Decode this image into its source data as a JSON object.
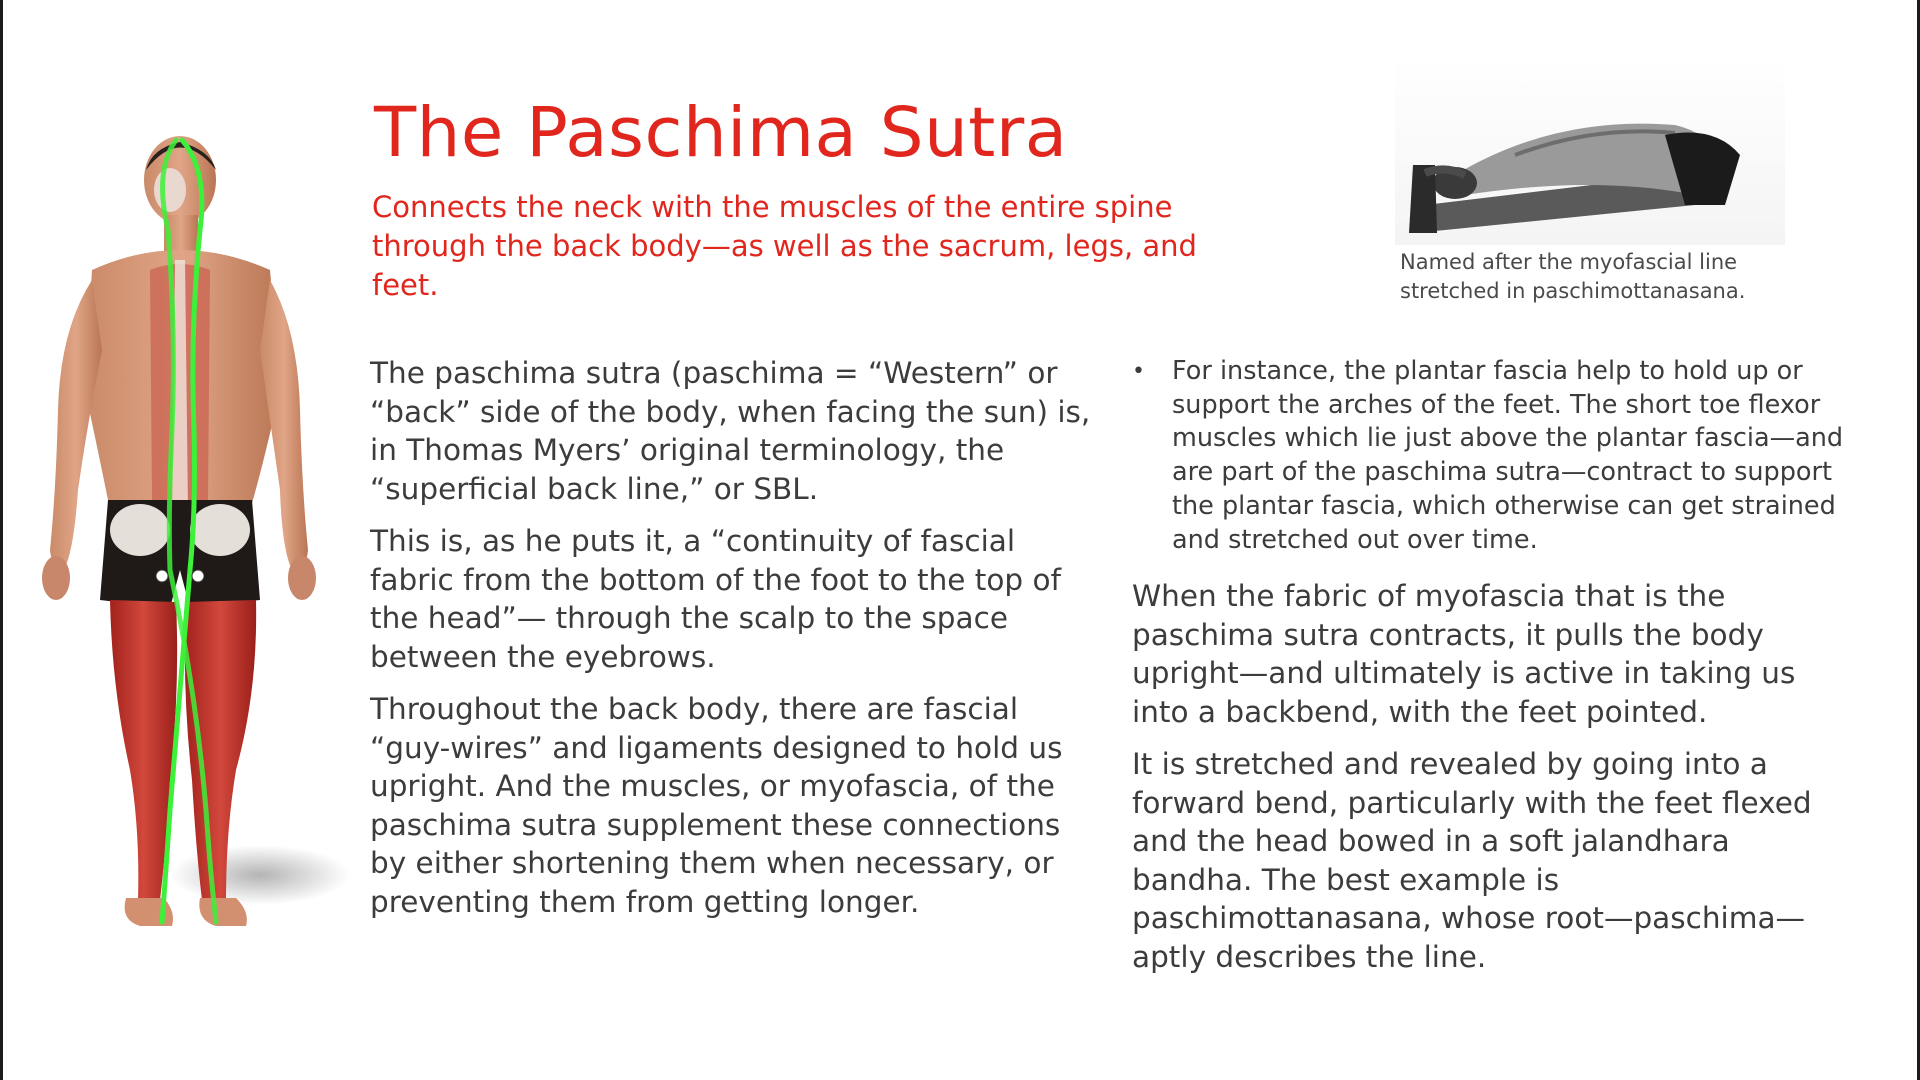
{
  "slide": {
    "title": "The Paschima Sutra",
    "subtitle": "Connects the neck with the muscles of the entire spine through the back body—as well as the sacrum, legs, and feet.",
    "accent_color": "#e0261d",
    "photo": {
      "icon": "forward-bend-photo",
      "caption": "Named after the myofascial line stretched in paschimottanasana."
    },
    "figure": {
      "icon": "anatomy-back-line-figure"
    },
    "left_column": [
      "The paschima sutra (paschima = “Western” or “back” side of the body, when facing the sun) is, in Thomas Myers’ original terminology, the “superficial back line,” or SBL.",
      "This is, as he puts it, a “continuity of fascial fabric from the bottom of the foot to the top of the head”— through the scalp to the space between the eyebrows.",
      "Throughout the back body, there are fascial “guy-wires” and ligaments designed to hold us upright. And the muscles, or myofascia, of the paschima sutra supplement these connections by either shortening them when necessary, or preventing them from getting longer."
    ],
    "right_column": {
      "bullet_marker": "•",
      "bullet": "For instance, the plantar fascia help to hold up or support the arches of the feet. The short toe flexor muscles which lie just above the plantar fascia—and are part of the paschima sutra—contract to support the plantar fascia, which otherwise can get strained and stretched out over time.",
      "paragraphs": [
        "When the fabric of myofascia that is the paschima sutra contracts, it pulls the body upright—and ultimately is active in taking us into a backbend, with the feet pointed.",
        "It is stretched and revealed by going into a forward bend, particularly with the feet flexed and the head bowed in a soft jalandhara bandha. The best example is paschimottanasana, whose root—paschima—aptly describes the line."
      ]
    }
  }
}
